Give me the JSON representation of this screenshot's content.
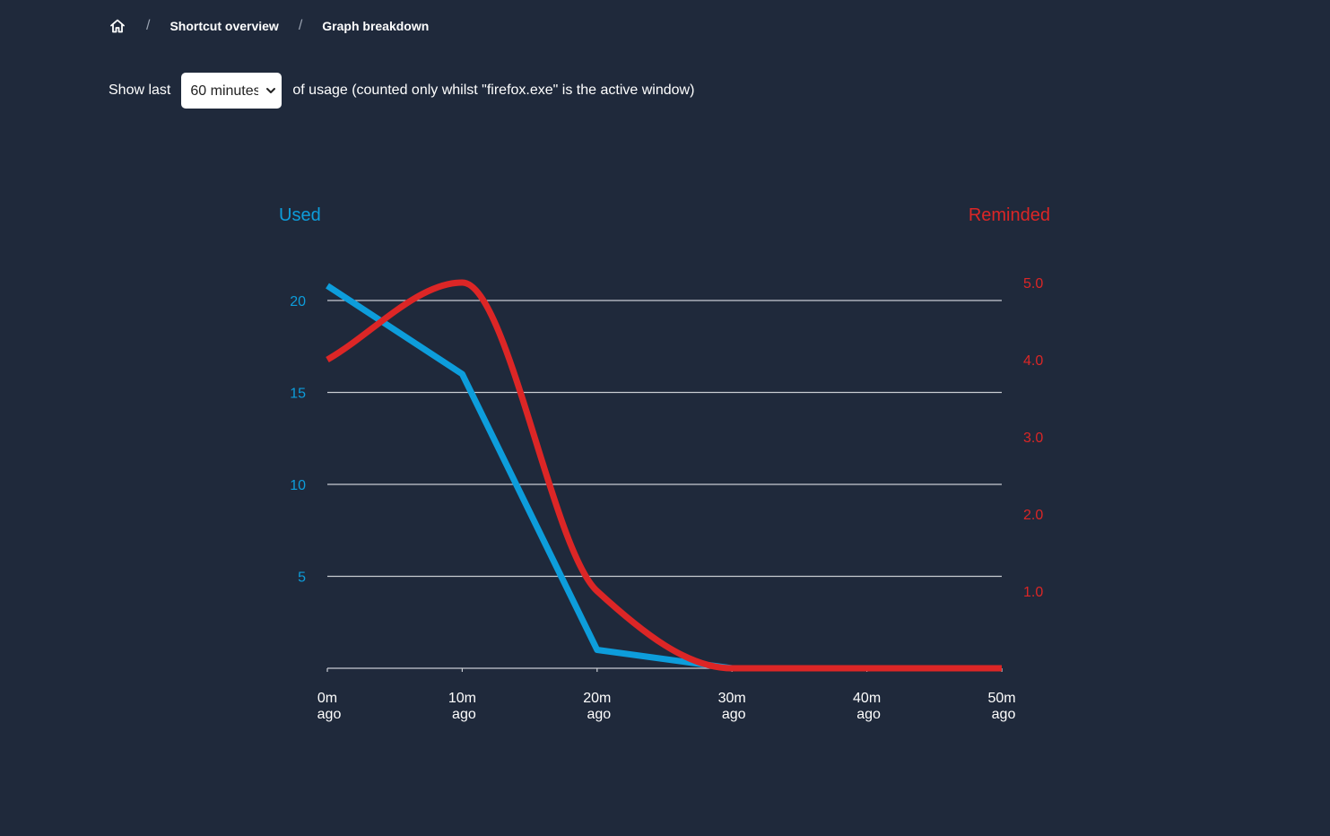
{
  "breadcrumb": {
    "home_icon": "home-icon",
    "items": [
      "Shortcut overview",
      "Graph breakdown"
    ],
    "separator": "/"
  },
  "controls": {
    "prefix": "Show last",
    "select_value": "60 minutes",
    "options": [
      "60 minutes"
    ],
    "suffix": "of usage (counted only whilst \"firefox.exe\" is the active window)"
  },
  "colors": {
    "background": "#1f293b",
    "used": "#0d9ddb",
    "reminded": "#dc2626",
    "grid": "#c8ccd2"
  },
  "chart_data": {
    "type": "line",
    "x": [
      0,
      10,
      20,
      30,
      40,
      50
    ],
    "xticks": [
      {
        "value": 0,
        "line1": "0m",
        "line2": "ago"
      },
      {
        "value": 10,
        "line1": "10m",
        "line2": "ago"
      },
      {
        "value": 20,
        "line1": "20m",
        "line2": "ago"
      },
      {
        "value": 30,
        "line1": "30m",
        "line2": "ago"
      },
      {
        "value": 40,
        "line1": "40m",
        "line2": "ago"
      },
      {
        "value": 50,
        "line1": "50m",
        "line2": "ago"
      }
    ],
    "xlim": [
      0,
      50
    ],
    "grid": true,
    "left_axis": {
      "label": "Used",
      "ylim": [
        0,
        20
      ],
      "ticks": [
        5,
        10,
        15,
        20
      ],
      "tick_labels": [
        "5",
        "10",
        "15",
        "20"
      ]
    },
    "right_axis": {
      "label": "Reminded",
      "ylim": [
        0,
        5
      ],
      "ticks": [
        1,
        2,
        3,
        4,
        5
      ],
      "tick_labels": [
        "1.0",
        "2.0",
        "3.0",
        "4.0",
        "5.0"
      ]
    },
    "series": [
      {
        "name": "Used",
        "axis": "left",
        "x": [
          0,
          10,
          20,
          30,
          40,
          50
        ],
        "values": [
          20.8,
          16,
          1,
          0,
          0,
          0
        ]
      },
      {
        "name": "Reminded",
        "axis": "right",
        "x": [
          0,
          10,
          20,
          30,
          40,
          50
        ],
        "values": [
          4,
          5,
          1,
          0,
          0,
          0
        ]
      }
    ]
  }
}
